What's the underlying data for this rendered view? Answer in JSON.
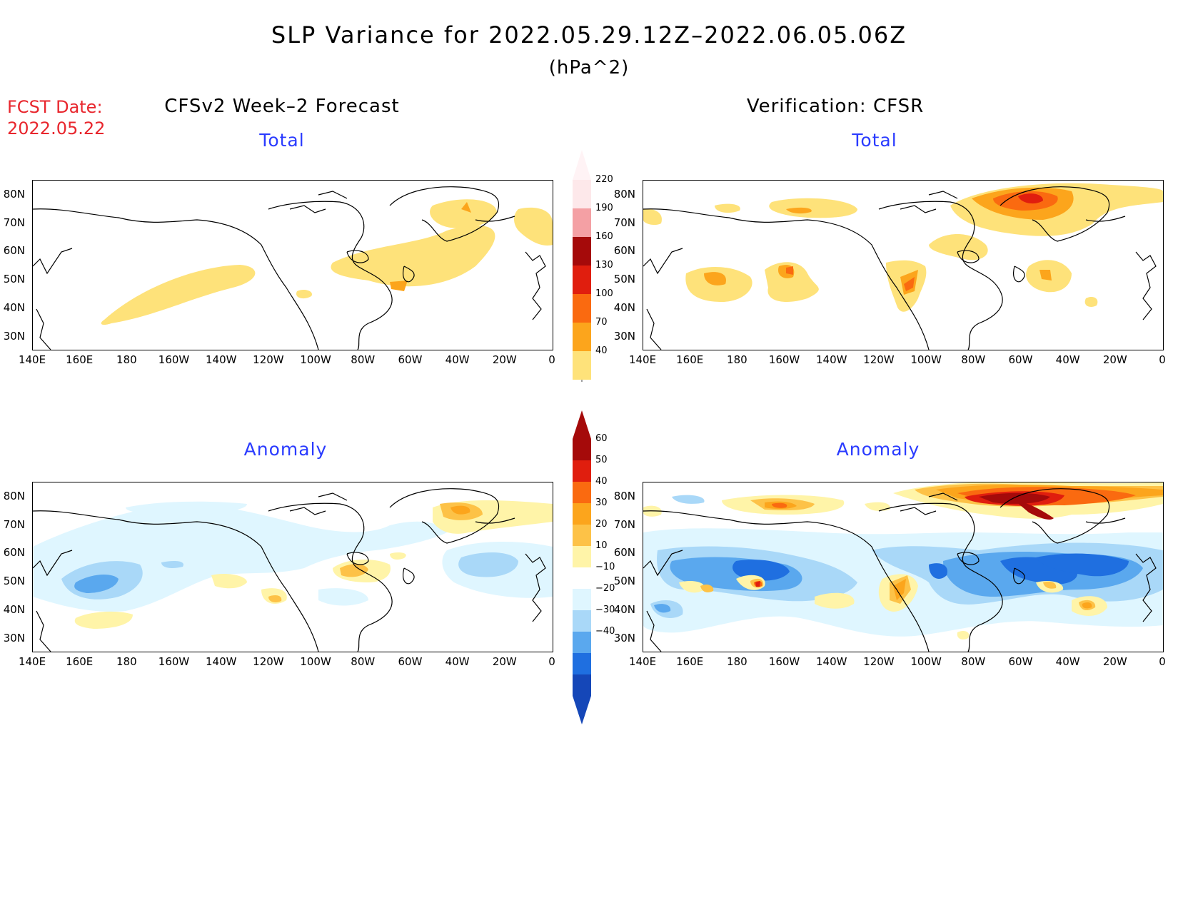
{
  "header": {
    "title": "SLP Variance for 2022.05.29.12Z–2022.06.05.06Z",
    "units": "(hPa^2)",
    "fcst_label": "FCST Date:",
    "fcst_date": "2022.05.22"
  },
  "columns": {
    "left": "CFSv2 Week–2 Forecast",
    "right": "Verification: CFSR"
  },
  "panels": {
    "top_left": "Total",
    "top_right": "Total",
    "bottom_left": "Anomaly",
    "bottom_right": "Anomaly"
  },
  "axes": {
    "lat_labels": [
      "80N",
      "70N",
      "60N",
      "50N",
      "40N",
      "30N"
    ],
    "lon_labels": [
      "140E",
      "160E",
      "180",
      "160W",
      "140W",
      "120W",
      "100W",
      "80W",
      "60W",
      "40W",
      "20W",
      "0"
    ]
  },
  "colorbar_total": {
    "levels": [
      "220",
      "190",
      "160",
      "130",
      "100",
      "70",
      "40"
    ],
    "colors": [
      "#fde8ea",
      "#f4a0a4",
      "#a50a0a",
      "#e01e0e",
      "#fa6a10",
      "#fca51c",
      "#fee27a"
    ]
  },
  "colorbar_anomaly": {
    "levels": [
      "60",
      "50",
      "40",
      "30",
      "20",
      "10",
      "−10",
      "−20",
      "−30",
      "−40"
    ],
    "colors": [
      "#a50a0a",
      "#e01e0e",
      "#fa6a10",
      "#fca51c",
      "#fdc247",
      "#fff4a8",
      "#ffffff",
      "#dff6ff",
      "#a9d8f8",
      "#5aa8ee",
      "#1f6fe0",
      "#1547b8"
    ]
  }
}
